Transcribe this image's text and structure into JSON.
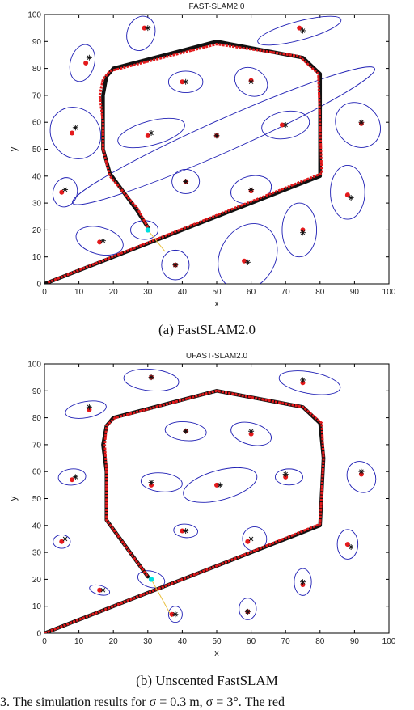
{
  "chart_data": [
    {
      "type": "scatter",
      "title": "FAST-SLAM2.0",
      "xlabel": "x",
      "ylabel": "y",
      "xlim": [
        0,
        100
      ],
      "ylim": [
        0,
        100
      ],
      "xticks": [
        0,
        10,
        20,
        30,
        40,
        50,
        60,
        70,
        80,
        90,
        100
      ],
      "yticks": [
        0,
        10,
        20,
        30,
        40,
        50,
        60,
        70,
        80,
        90,
        100
      ],
      "caption": "(a) FastSLAM2.0",
      "colors": {
        "estimate": "#e41a1c",
        "truth": "#111111",
        "ellipse": "#1f1fb4",
        "robot": "#00e0e0",
        "ray": "#e8c040"
      },
      "true_path": [
        [
          0,
          0
        ],
        [
          50,
          25
        ],
        [
          80,
          40
        ],
        [
          80,
          78
        ],
        [
          75,
          84
        ],
        [
          50,
          90
        ],
        [
          20,
          80
        ],
        [
          18,
          77
        ],
        [
          17,
          70
        ],
        [
          17,
          60
        ],
        [
          17,
          50
        ],
        [
          19,
          41
        ],
        [
          27,
          27
        ],
        [
          30,
          21
        ]
      ],
      "estimated_path": [
        [
          1,
          0.5
        ],
        [
          50,
          25.5
        ],
        [
          80.5,
          41
        ],
        [
          79.5,
          78
        ],
        [
          74,
          84.5
        ],
        [
          50,
          89
        ],
        [
          19,
          79
        ],
        [
          17,
          76
        ],
        [
          16,
          70
        ],
        [
          17,
          60
        ],
        [
          17,
          50
        ],
        [
          19,
          40
        ],
        [
          27,
          28
        ],
        [
          30,
          21
        ]
      ],
      "landmarks_true": [
        [
          13,
          84
        ],
        [
          30,
          95
        ],
        [
          75,
          94
        ],
        [
          41,
          75
        ],
        [
          60,
          75
        ],
        [
          31,
          56
        ],
        [
          9,
          58
        ],
        [
          50,
          55
        ],
        [
          70,
          59
        ],
        [
          92,
          60
        ],
        [
          6,
          35
        ],
        [
          41,
          38
        ],
        [
          60,
          35
        ],
        [
          89,
          32
        ],
        [
          17,
          16
        ],
        [
          38,
          7
        ],
        [
          59,
          8
        ],
        [
          75,
          19
        ]
      ],
      "landmarks_est": [
        [
          12,
          82
        ],
        [
          29,
          95
        ],
        [
          74,
          95
        ],
        [
          40,
          75
        ],
        [
          60,
          75.5
        ],
        [
          30,
          55
        ],
        [
          8,
          56
        ],
        [
          50,
          55
        ],
        [
          69,
          59
        ],
        [
          92,
          59.5
        ],
        [
          5,
          34
        ],
        [
          41,
          38
        ],
        [
          60,
          34.5
        ],
        [
          88,
          33
        ],
        [
          16,
          15.5
        ],
        [
          38,
          7
        ],
        [
          58,
          8.5
        ],
        [
          75,
          20
        ]
      ],
      "ellipses": [
        {
          "cx": 11,
          "cy": 82,
          "rx": 3.5,
          "ry": 7,
          "angle": -15
        },
        {
          "cx": 28,
          "cy": 93,
          "rx": 4,
          "ry": 6.5,
          "angle": -20
        },
        {
          "cx": 74,
          "cy": 94,
          "rx": 12.5,
          "ry": 3.5,
          "angle": 15
        },
        {
          "cx": 41,
          "cy": 75,
          "rx": 5,
          "ry": 4,
          "angle": 0
        },
        {
          "cx": 60,
          "cy": 75,
          "rx": 5,
          "ry": 5,
          "angle": -30
        },
        {
          "cx": 31,
          "cy": 56,
          "rx": 10,
          "ry": 4.5,
          "angle": 15
        },
        {
          "cx": 9,
          "cy": 56,
          "rx": 7,
          "ry": 10,
          "angle": 40
        },
        {
          "cx": 70,
          "cy": 59,
          "rx": 7,
          "ry": 5,
          "angle": 10
        },
        {
          "cx": 91,
          "cy": 59,
          "rx": 6,
          "ry": 9,
          "angle": 45
        },
        {
          "cx": 52,
          "cy": 55,
          "rx": 48,
          "ry": 6,
          "angle": 24
        },
        {
          "cx": 6,
          "cy": 34,
          "rx": 3.5,
          "ry": 5.5,
          "angle": -15
        },
        {
          "cx": 41,
          "cy": 38,
          "rx": 4,
          "ry": 4.5,
          "angle": 0
        },
        {
          "cx": 60,
          "cy": 35,
          "rx": 6,
          "ry": 5,
          "angle": 15
        },
        {
          "cx": 88,
          "cy": 34,
          "rx": 5,
          "ry": 10,
          "angle": 0
        },
        {
          "cx": 16,
          "cy": 16,
          "rx": 7,
          "ry": 5,
          "angle": -15
        },
        {
          "cx": 38,
          "cy": 7,
          "rx": 4,
          "ry": 5.5,
          "angle": 0
        },
        {
          "cx": 59,
          "cy": 10,
          "rx": 8,
          "ry": 13,
          "angle": -30
        },
        {
          "cx": 74,
          "cy": 20,
          "rx": 5,
          "ry": 10,
          "angle": 0
        },
        {
          "cx": 29,
          "cy": 20,
          "rx": 4,
          "ry": 3.5,
          "angle": 0
        }
      ],
      "robot": [
        30,
        20
      ],
      "ray_end": [
        35,
        12
      ]
    },
    {
      "type": "scatter",
      "title": "UFAST-SLAM2.0",
      "xlabel": "x",
      "ylabel": "y",
      "xlim": [
        0,
        100
      ],
      "ylim": [
        0,
        100
      ],
      "xticks": [
        0,
        10,
        20,
        30,
        40,
        50,
        60,
        70,
        80,
        90,
        100
      ],
      "yticks": [
        0,
        10,
        20,
        30,
        40,
        50,
        60,
        70,
        80,
        90,
        100
      ],
      "caption": "(b) Unscented FastSLAM",
      "colors": {
        "estimate": "#e41a1c",
        "truth": "#111111",
        "ellipse": "#1f1fb4",
        "robot": "#00e0e0",
        "ray": "#e8c040"
      },
      "true_path": [
        [
          0,
          0
        ],
        [
          50,
          25
        ],
        [
          80,
          40
        ],
        [
          81,
          65
        ],
        [
          80,
          78
        ],
        [
          75,
          84
        ],
        [
          50,
          90
        ],
        [
          20,
          80
        ],
        [
          18,
          77
        ],
        [
          17,
          70
        ],
        [
          18,
          60
        ],
        [
          18,
          50
        ],
        [
          18,
          42
        ],
        [
          30,
          21
        ]
      ],
      "estimated_path": [
        [
          0,
          0
        ],
        [
          50,
          25
        ],
        [
          80,
          40.5
        ],
        [
          81,
          65
        ],
        [
          80.5,
          78
        ],
        [
          75,
          84
        ],
        [
          50,
          90
        ],
        [
          20.5,
          80
        ],
        [
          18,
          77
        ],
        [
          17.5,
          70
        ],
        [
          18,
          60
        ],
        [
          18,
          50
        ],
        [
          18,
          42
        ],
        [
          30,
          21
        ]
      ],
      "landmarks_true": [
        [
          13,
          84
        ],
        [
          31,
          95
        ],
        [
          75,
          94
        ],
        [
          41,
          75
        ],
        [
          60,
          75
        ],
        [
          31,
          56
        ],
        [
          9,
          58
        ],
        [
          51,
          55
        ],
        [
          70,
          59
        ],
        [
          92,
          60
        ],
        [
          6,
          35
        ],
        [
          41,
          38
        ],
        [
          60,
          35
        ],
        [
          89,
          32
        ],
        [
          17,
          16
        ],
        [
          38,
          7
        ],
        [
          59,
          8
        ],
        [
          75,
          19
        ]
      ],
      "landmarks_est": [
        [
          13,
          83
        ],
        [
          31,
          95
        ],
        [
          75,
          93
        ],
        [
          41,
          75
        ],
        [
          60,
          74
        ],
        [
          31,
          55
        ],
        [
          8,
          57
        ],
        [
          50,
          55
        ],
        [
          70,
          58
        ],
        [
          92,
          59
        ],
        [
          5,
          34
        ],
        [
          40,
          38
        ],
        [
          59,
          34
        ],
        [
          88,
          33
        ],
        [
          16,
          16
        ],
        [
          37,
          7
        ],
        [
          59,
          8
        ],
        [
          75,
          18
        ]
      ],
      "ellipses": [
        {
          "cx": 12,
          "cy": 83,
          "rx": 6,
          "ry": 3,
          "angle": 10
        },
        {
          "cx": 31,
          "cy": 94,
          "rx": 8,
          "ry": 4,
          "angle": -5
        },
        {
          "cx": 77,
          "cy": 93,
          "rx": 9,
          "ry": 4,
          "angle": -10
        },
        {
          "cx": 41,
          "cy": 75,
          "rx": 6,
          "ry": 3.5,
          "angle": -5
        },
        {
          "cx": 60,
          "cy": 74,
          "rx": 6,
          "ry": 4,
          "angle": -15
        },
        {
          "cx": 34,
          "cy": 56,
          "rx": 6,
          "ry": 3.5,
          "angle": -5
        },
        {
          "cx": 8,
          "cy": 58,
          "rx": 4,
          "ry": 3,
          "angle": 5
        },
        {
          "cx": 51,
          "cy": 55,
          "rx": 11,
          "ry": 5.5,
          "angle": 15
        },
        {
          "cx": 71,
          "cy": 58,
          "rx": 4,
          "ry": 3,
          "angle": 0
        },
        {
          "cx": 92,
          "cy": 58,
          "rx": 4,
          "ry": 6,
          "angle": 30
        },
        {
          "cx": 5,
          "cy": 34,
          "rx": 2.5,
          "ry": 2.5,
          "angle": 0
        },
        {
          "cx": 41,
          "cy": 38,
          "rx": 3.5,
          "ry": 2.5,
          "angle": -5
        },
        {
          "cx": 61,
          "cy": 35,
          "rx": 3.5,
          "ry": 4.5,
          "angle": 20
        },
        {
          "cx": 88,
          "cy": 33,
          "rx": 3,
          "ry": 5.5,
          "angle": 0
        },
        {
          "cx": 16,
          "cy": 16,
          "rx": 3,
          "ry": 1.7,
          "angle": -15
        },
        {
          "cx": 38,
          "cy": 7,
          "rx": 2,
          "ry": 3,
          "angle": 0
        },
        {
          "cx": 59,
          "cy": 9,
          "rx": 2.5,
          "ry": 4,
          "angle": 0
        },
        {
          "cx": 75,
          "cy": 19,
          "rx": 2.5,
          "ry": 5,
          "angle": 0
        },
        {
          "cx": 31,
          "cy": 20,
          "rx": 4,
          "ry": 3,
          "angle": -15
        }
      ],
      "robot": [
        31,
        20
      ],
      "ray_end": [
        37,
        6
      ]
    }
  ],
  "footer_text": "3. The simulation results for σ = 0.3 m, σ = 3°. The red"
}
